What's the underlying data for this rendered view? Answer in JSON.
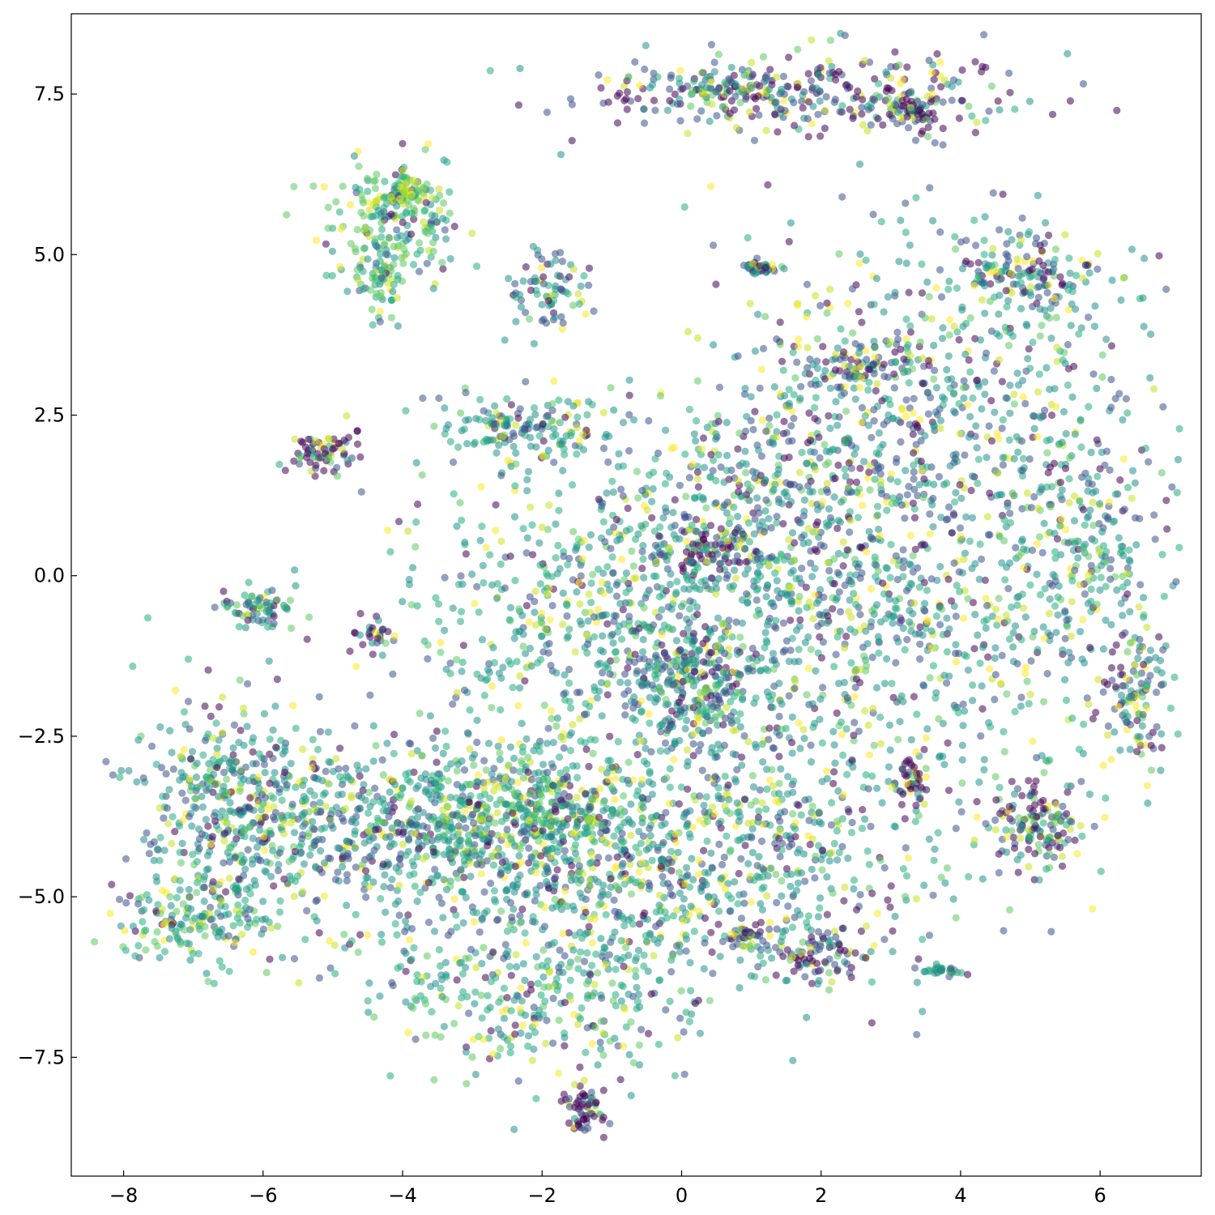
{
  "chart_data": {
    "type": "scatter",
    "title": "",
    "xlabel": "",
    "ylabel": "",
    "xlim": [
      -8.75,
      7.45
    ],
    "ylim": [
      -9.35,
      8.75
    ],
    "x_ticks": [
      -8,
      -6,
      -4,
      -2,
      0,
      2,
      4,
      6
    ],
    "y_ticks": [
      -7.5,
      -5.0,
      -2.5,
      0.0,
      2.5,
      5.0,
      7.5
    ],
    "x_tick_labels": [
      "−8",
      "−6",
      "−4",
      "−2",
      "0",
      "2",
      "4",
      "6"
    ],
    "y_tick_labels": [
      "−7.5",
      "−5.0",
      "−2.5",
      "0.0",
      "2.5",
      "5.0",
      "7.5"
    ],
    "grid": false,
    "legend": "none",
    "colormap": "viridis",
    "point_alpha": 0.55,
    "palette": [
      "#440154",
      "#3b528b",
      "#21918c",
      "#27ad81",
      "#5ec962",
      "#c8e020",
      "#fde725"
    ],
    "clusters": [
      {
        "x": 1.8,
        "y": 7.5,
        "sx": 1.6,
        "sy": 0.35,
        "n": 320,
        "c": 0.15
      },
      {
        "x": 3.3,
        "y": 7.3,
        "sx": 0.2,
        "sy": 0.15,
        "n": 60,
        "c": 0.0
      },
      {
        "x": 0.6,
        "y": 7.6,
        "sx": 0.4,
        "sy": 0.1,
        "n": 60,
        "c": 0.25
      },
      {
        "x": -4.1,
        "y": 5.5,
        "sx": 0.5,
        "sy": 0.5,
        "n": 200,
        "c": 0.6
      },
      {
        "x": -3.9,
        "y": 6.0,
        "sx": 0.15,
        "sy": 0.1,
        "n": 60,
        "c": 0.62
      },
      {
        "x": -4.3,
        "y": 4.5,
        "sx": 0.15,
        "sy": 0.3,
        "n": 60,
        "c": 0.6
      },
      {
        "x": -5.1,
        "y": 1.9,
        "sx": 0.25,
        "sy": 0.15,
        "n": 70,
        "c": 0.0
      },
      {
        "x": -6.1,
        "y": -0.5,
        "sx": 0.3,
        "sy": 0.15,
        "n": 70,
        "c": 0.4
      },
      {
        "x": -4.4,
        "y": -0.9,
        "sx": 0.12,
        "sy": 0.15,
        "n": 30,
        "c": 0.05
      },
      {
        "x": 1.15,
        "y": 4.8,
        "sx": 0.12,
        "sy": 0.05,
        "n": 40,
        "c": 0.25
      },
      {
        "x": -1.9,
        "y": 4.4,
        "sx": 0.3,
        "sy": 0.4,
        "n": 80,
        "c": 0.3
      },
      {
        "x": -2.3,
        "y": 2.3,
        "sx": 0.7,
        "sy": 0.25,
        "n": 160,
        "c": 0.35
      },
      {
        "x": 2.6,
        "y": 3.3,
        "sx": 0.4,
        "sy": 0.2,
        "n": 80,
        "c": 0.2
      },
      {
        "x": 5.0,
        "y": 4.7,
        "sx": 0.5,
        "sy": 0.3,
        "n": 140,
        "c": 0.3
      },
      {
        "x": 3.7,
        "y": 2.5,
        "sx": 1.6,
        "sy": 1.5,
        "n": 700,
        "c": 0.3
      },
      {
        "x": 1.6,
        "y": 0.7,
        "sx": 1.2,
        "sy": 1.2,
        "n": 550,
        "c": 0.3
      },
      {
        "x": 0.4,
        "y": 0.4,
        "sx": 0.25,
        "sy": 0.2,
        "n": 60,
        "c": 0.0
      },
      {
        "x": -0.7,
        "y": -0.7,
        "sx": 1.6,
        "sy": 1.3,
        "n": 800,
        "c": 0.4
      },
      {
        "x": 0.2,
        "y": -1.6,
        "sx": 0.5,
        "sy": 0.5,
        "n": 200,
        "c": 0.3
      },
      {
        "x": -3.5,
        "y": -3.8,
        "sx": 1.5,
        "sy": 0.6,
        "n": 700,
        "c": 0.35
      },
      {
        "x": -6.5,
        "y": -3.6,
        "sx": 0.7,
        "sy": 0.9,
        "n": 400,
        "c": 0.35
      },
      {
        "x": -2.0,
        "y": -3.6,
        "sx": 0.8,
        "sy": 0.35,
        "n": 200,
        "c": 0.55
      },
      {
        "x": -1.5,
        "y": -5.0,
        "sx": 1.8,
        "sy": 0.9,
        "n": 600,
        "c": 0.35
      },
      {
        "x": 1.2,
        "y": -3.8,
        "sx": 1.6,
        "sy": 1.2,
        "n": 500,
        "c": 0.35
      },
      {
        "x": 2.0,
        "y": -5.9,
        "sx": 0.3,
        "sy": 0.2,
        "n": 80,
        "c": 0.1
      },
      {
        "x": 0.9,
        "y": -5.6,
        "sx": 0.2,
        "sy": 0.1,
        "n": 40,
        "c": 0.15
      },
      {
        "x": -1.4,
        "y": -8.3,
        "sx": 0.15,
        "sy": 0.2,
        "n": 60,
        "c": 0.1
      },
      {
        "x": 3.3,
        "y": -3.2,
        "sx": 0.1,
        "sy": 0.2,
        "n": 40,
        "c": 0.0
      },
      {
        "x": 5.0,
        "y": -3.9,
        "sx": 0.35,
        "sy": 0.35,
        "n": 140,
        "c": 0.15
      },
      {
        "x": 6.5,
        "y": -1.8,
        "sx": 0.25,
        "sy": 0.6,
        "n": 110,
        "c": 0.2
      },
      {
        "x": 5.8,
        "y": 0.4,
        "sx": 0.5,
        "sy": 0.6,
        "n": 150,
        "c": 0.4
      },
      {
        "x": 3.7,
        "y": -6.15,
        "sx": 0.15,
        "sy": 0.04,
        "n": 30,
        "c": 0.4
      },
      {
        "x": -7.0,
        "y": -5.4,
        "sx": 0.6,
        "sy": 0.35,
        "n": 150,
        "c": 0.4
      },
      {
        "x": -2.0,
        "y": -6.6,
        "sx": 1.2,
        "sy": 0.6,
        "n": 250,
        "c": 0.45
      },
      {
        "x": 4.3,
        "y": -1.2,
        "sx": 1.4,
        "sy": 1.0,
        "n": 300,
        "c": 0.35
      }
    ]
  }
}
